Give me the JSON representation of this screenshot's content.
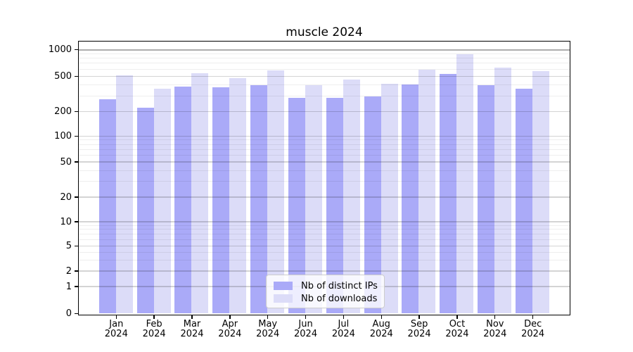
{
  "chart_data": {
    "type": "bar",
    "title": "muscle 2024",
    "categories": [
      "Jan",
      "Feb",
      "Mar",
      "Apr",
      "May",
      "Jun",
      "Jul",
      "Aug",
      "Sep",
      "Oct",
      "Nov",
      "Dec"
    ],
    "category_year": "2024",
    "series": [
      {
        "name": "Nb of distinct IPs",
        "color": "#aaaaf8",
        "values": [
          272,
          218,
          379,
          371,
          391,
          284,
          284,
          290,
          396,
          530,
          389,
          356
        ]
      },
      {
        "name": "Nb of downloads",
        "color": "#dcdcf8",
        "values": [
          508,
          356,
          535,
          471,
          577,
          389,
          451,
          404,
          584,
          876,
          615,
          569
        ]
      }
    ],
    "yscale": "symlog",
    "y_ticks": [
      1000,
      500,
      200,
      100,
      50,
      20,
      10,
      5,
      2,
      1,
      0
    ],
    "y_minor_ticks": [
      3,
      4,
      6,
      7,
      8,
      9,
      30,
      40,
      60,
      70,
      80,
      90,
      300,
      400,
      600,
      700,
      800,
      900
    ],
    "ylim": [
      0,
      1200
    ],
    "grid": "on",
    "legend_position": "lower center",
    "colors": {
      "background": "#ffffff",
      "spine": "#000000"
    }
  }
}
